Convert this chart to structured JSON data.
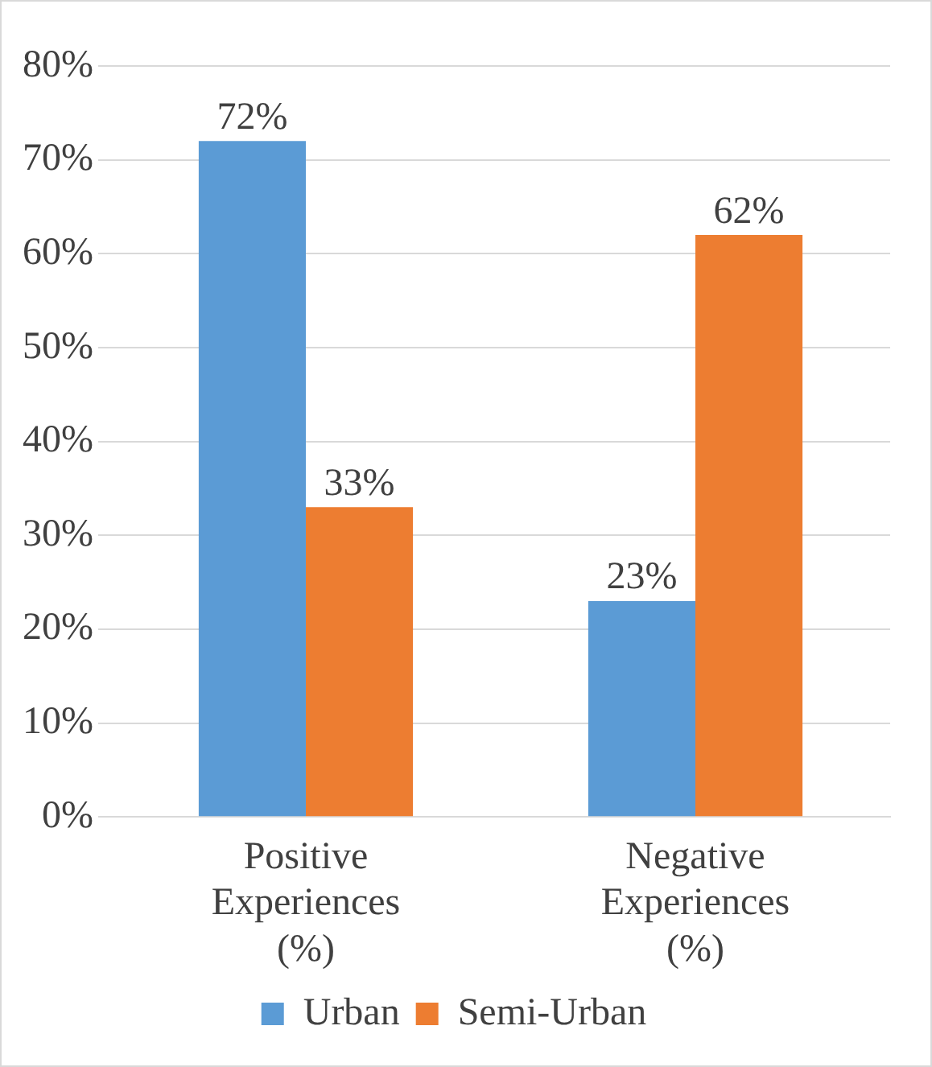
{
  "chart_data": {
    "type": "bar",
    "categories": [
      "Positive Experiences (%)",
      "Negative Experiences (%)"
    ],
    "series": [
      {
        "name": "Urban",
        "color": "#5b9bd5",
        "values": [
          72,
          23
        ],
        "value_labels": [
          "72%",
          "23%"
        ]
      },
      {
        "name": "Semi-Urban",
        "color": "#ed7d31",
        "values": [
          33,
          62
        ],
        "value_labels": [
          "33%",
          "62%"
        ]
      }
    ],
    "ylim": [
      0,
      80
    ],
    "yticks": [
      {
        "value": 0,
        "label": "0%"
      },
      {
        "value": 10,
        "label": "10%"
      },
      {
        "value": 20,
        "label": "20%"
      },
      {
        "value": 30,
        "label": "30%"
      },
      {
        "value": 40,
        "label": "40%"
      },
      {
        "value": 50,
        "label": "50%"
      },
      {
        "value": 60,
        "label": "60%"
      },
      {
        "value": 70,
        "label": "70%"
      },
      {
        "value": 80,
        "label": "80%"
      }
    ],
    "grid": "y",
    "legend": "bottom"
  }
}
